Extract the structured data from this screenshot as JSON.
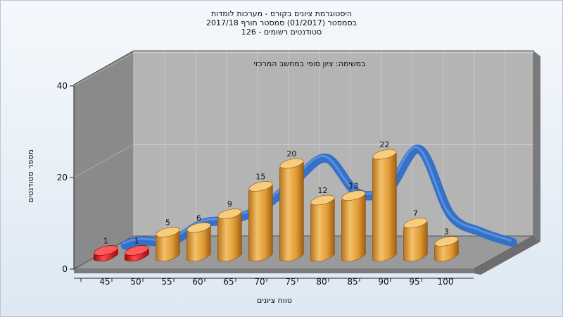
{
  "header": {
    "line1": "היסטוגרמת ציונים בקורס - מערכות לומדות",
    "line2": "בסמסטר  (01/2017)  סמסטר חורף 2017/18",
    "line3": "סטודנטים רשומים - 126"
  },
  "chart_data": {
    "type": "bar",
    "subtitle": "במשימה: ציון סופי במחשב המרכזי",
    "xlabel": "טווח ציונים",
    "ylabel": "מספר סטודנטים",
    "categories": [
      "45",
      "50",
      "55",
      "60",
      "65",
      "70",
      "75",
      "80",
      "85",
      "90",
      "95",
      "100"
    ],
    "values": [
      1,
      1,
      5,
      6,
      9,
      15,
      20,
      12,
      13,
      22,
      7,
      3
    ],
    "bar_colors": [
      "#e01818",
      "#e01818",
      "#e8a43c",
      "#e8a43c",
      "#e8a43c",
      "#e8a43c",
      "#e8a43c",
      "#e8a43c",
      "#e8a43c",
      "#e8a43c",
      "#e8a43c",
      "#e8a43c"
    ],
    "curve_color": "#2f6ec8",
    "ylim": [
      0,
      40
    ],
    "yticks": [
      0,
      20,
      40
    ],
    "grid": true
  }
}
